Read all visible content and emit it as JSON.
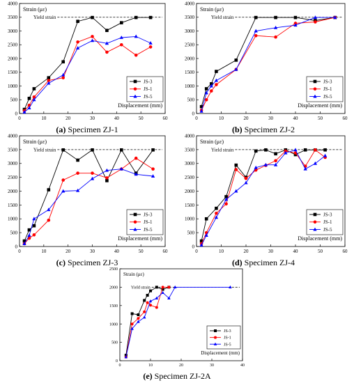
{
  "chart_data": [
    {
      "type": "line",
      "caption_letter": "(a)",
      "caption_text": " Specimen ZJ-1",
      "ylabel": "Strain (με)",
      "xlabel": "Displacement (mm)",
      "yield_label": "Yield strain",
      "yield_value": 3500,
      "xlim": [
        0,
        60
      ],
      "ylim": [
        0,
        4000
      ],
      "xticks": [
        0,
        10,
        20,
        30,
        40,
        50,
        60
      ],
      "yticks": [
        0,
        500,
        1000,
        1500,
        2000,
        2500,
        3000,
        3500,
        4000
      ],
      "series": [
        {
          "name": "JS-3",
          "color": "#000000",
          "marker": "square",
          "x": [
            2,
            4,
            6,
            12,
            18,
            24,
            30,
            36,
            42,
            48,
            54
          ],
          "y": [
            150,
            550,
            900,
            1300,
            1880,
            3350,
            3490,
            3020,
            3300,
            3490,
            3490
          ]
        },
        {
          "name": "JS-1",
          "color": "#ff0000",
          "marker": "circle",
          "x": [
            2,
            4,
            6,
            12,
            18,
            24,
            30,
            36,
            42,
            48,
            54
          ],
          "y": [
            100,
            300,
            600,
            1200,
            1300,
            2600,
            2800,
            2230,
            2500,
            2120,
            2420
          ]
        },
        {
          "name": "JS-5",
          "color": "#0000ff",
          "marker": "triangle",
          "x": [
            2,
            4,
            6,
            12,
            18,
            24,
            30,
            36,
            42,
            48,
            54
          ],
          "y": [
            50,
            200,
            500,
            1100,
            1400,
            2380,
            2650,
            2550,
            2760,
            2800,
            2560
          ]
        }
      ]
    },
    {
      "type": "line",
      "caption_letter": "(b)",
      "caption_text": " Specimen ZJ-2",
      "ylabel": "Strain (με)",
      "xlabel": "Displacement (mm)",
      "yield_label": "Yield strain",
      "yield_value": 3500,
      "xlim": [
        0,
        60
      ],
      "ylim": [
        0,
        4000
      ],
      "xticks": [
        0,
        10,
        20,
        30,
        40,
        50,
        60
      ],
      "yticks": [
        0,
        500,
        1000,
        1500,
        2000,
        2500,
        3000,
        3500,
        4000
      ],
      "series": [
        {
          "name": "JS-3",
          "color": "#000000",
          "marker": "square",
          "x": [
            2,
            4,
            6,
            8,
            16,
            24,
            32,
            40,
            48,
            56
          ],
          "y": [
            250,
            900,
            1080,
            1530,
            1940,
            3490,
            3490,
            3490,
            3380,
            3490
          ]
        },
        {
          "name": "JS-1",
          "color": "#ff0000",
          "marker": "circle",
          "x": [
            2,
            4,
            6,
            8,
            16,
            24,
            32,
            40,
            48,
            56
          ],
          "y": [
            120,
            500,
            820,
            1050,
            1600,
            2830,
            2780,
            3280,
            3330,
            3490
          ]
        },
        {
          "name": "JS-5",
          "color": "#0000ff",
          "marker": "triangle",
          "x": [
            2,
            4,
            6,
            8,
            16,
            24,
            32,
            40,
            48,
            56
          ],
          "y": [
            80,
            750,
            1000,
            1200,
            1600,
            3000,
            3120,
            3210,
            3490,
            3490
          ]
        }
      ]
    },
    {
      "type": "line",
      "caption_letter": "(c)",
      "caption_text": " Specimen ZJ-3",
      "ylabel": "Strain (με)",
      "xlabel": "Displacement (mm)",
      "yield_label": "Yield strain",
      "yield_value": 3500,
      "xlim": [
        0,
        60
      ],
      "ylim": [
        0,
        4000
      ],
      "xticks": [
        0,
        10,
        20,
        30,
        40,
        50,
        60
      ],
      "yticks": [
        0,
        500,
        1000,
        1500,
        2000,
        2500,
        3000,
        3500,
        4000
      ],
      "series": [
        {
          "name": "JS-3",
          "color": "#000000",
          "marker": "square",
          "x": [
            2,
            4,
            6,
            12,
            18,
            24,
            30,
            36,
            42,
            48,
            55
          ],
          "y": [
            200,
            600,
            750,
            2050,
            3490,
            3120,
            3490,
            2380,
            3490,
            2650,
            3490
          ]
        },
        {
          "name": "JS-1",
          "color": "#ff0000",
          "marker": "circle",
          "x": [
            2,
            4,
            6,
            12,
            18,
            24,
            30,
            36,
            42,
            48,
            55
          ],
          "y": [
            100,
            300,
            420,
            950,
            2400,
            2650,
            2650,
            2480,
            2800,
            3190,
            2800
          ]
        },
        {
          "name": "JS-5",
          "color": "#0000ff",
          "marker": "triangle",
          "x": [
            2,
            4,
            6,
            12,
            18,
            24,
            30,
            36,
            42,
            48,
            55
          ],
          "y": [
            100,
            400,
            1000,
            1330,
            2000,
            2020,
            2450,
            2750,
            2800,
            2610,
            2540
          ]
        }
      ]
    },
    {
      "type": "line",
      "caption_letter": "(d)",
      "caption_text": " Specimen ZJ-4",
      "ylabel": "Strain (με)",
      "xlabel": "Displacement (mm)",
      "yield_label": "Yield strain",
      "yield_value": 3500,
      "xlim": [
        0,
        60
      ],
      "ylim": [
        0,
        4000
      ],
      "xticks": [
        0,
        10,
        20,
        30,
        40,
        50,
        60
      ],
      "yticks": [
        0,
        500,
        1000,
        1500,
        2000,
        2500,
        3000,
        3500,
        4000
      ],
      "series": [
        {
          "name": "JS-3",
          "color": "#000000",
          "marker": "square",
          "x": [
            2,
            4,
            8,
            12,
            16,
            20,
            24,
            28,
            32,
            36,
            40,
            44,
            48,
            52
          ],
          "y": [
            200,
            1000,
            1380,
            1800,
            2940,
            2500,
            3450,
            3490,
            3350,
            3490,
            3320,
            3490,
            3490,
            3490
          ]
        },
        {
          "name": "JS-1",
          "color": "#ff0000",
          "marker": "circle",
          "x": [
            2,
            4,
            8,
            12,
            16,
            20,
            24,
            28,
            32,
            36,
            40,
            44,
            48,
            52
          ],
          "y": [
            100,
            500,
            1200,
            1540,
            2780,
            2460,
            2760,
            2930,
            3100,
            3450,
            3380,
            2900,
            3490,
            3220
          ]
        },
        {
          "name": "JS-5",
          "color": "#0000ff",
          "marker": "triangle",
          "x": [
            2,
            4,
            8,
            12,
            16,
            20,
            24,
            28,
            32,
            36,
            40,
            44,
            48,
            52
          ],
          "y": [
            50,
            400,
            1050,
            1700,
            2000,
            2300,
            2850,
            2950,
            2950,
            3380,
            3490,
            2800,
            3000,
            3280
          ]
        }
      ]
    },
    {
      "type": "line",
      "caption_letter": "(e)",
      "caption_text": " Specimen ZJ-2A",
      "ylabel": "Strain (με)",
      "xlabel": "Displacement (mm)",
      "yield_label": "Yield strain",
      "yield_value": 2000,
      "xlim": [
        0,
        40
      ],
      "ylim": [
        0,
        2500
      ],
      "xticks": [
        0,
        10,
        20,
        30,
        40
      ],
      "yticks": [
        0,
        500,
        1000,
        1500,
        2000,
        2500
      ],
      "series": [
        {
          "name": "JS-3",
          "color": "#000000",
          "marker": "square",
          "x": [
            2,
            4,
            6,
            8,
            9,
            10,
            12,
            14,
            16
          ],
          "y": [
            150,
            1280,
            1250,
            1640,
            1780,
            1900,
            2000,
            1940,
            2000
          ]
        },
        {
          "name": "JS-1",
          "color": "#ff0000",
          "marker": "circle",
          "x": [
            2,
            4,
            6,
            8,
            9,
            10,
            12,
            14,
            16
          ],
          "y": [
            100,
            1000,
            1150,
            1330,
            1580,
            1510,
            1450,
            2000,
            2000
          ]
        },
        {
          "name": "JS-5",
          "color": "#0000ff",
          "marker": "triangle",
          "x": [
            2,
            4,
            6,
            8,
            10,
            12,
            14,
            16,
            18,
            36
          ],
          "y": [
            100,
            870,
            1060,
            1180,
            1620,
            1700,
            1850,
            1700,
            2000,
            2000
          ]
        }
      ]
    }
  ]
}
